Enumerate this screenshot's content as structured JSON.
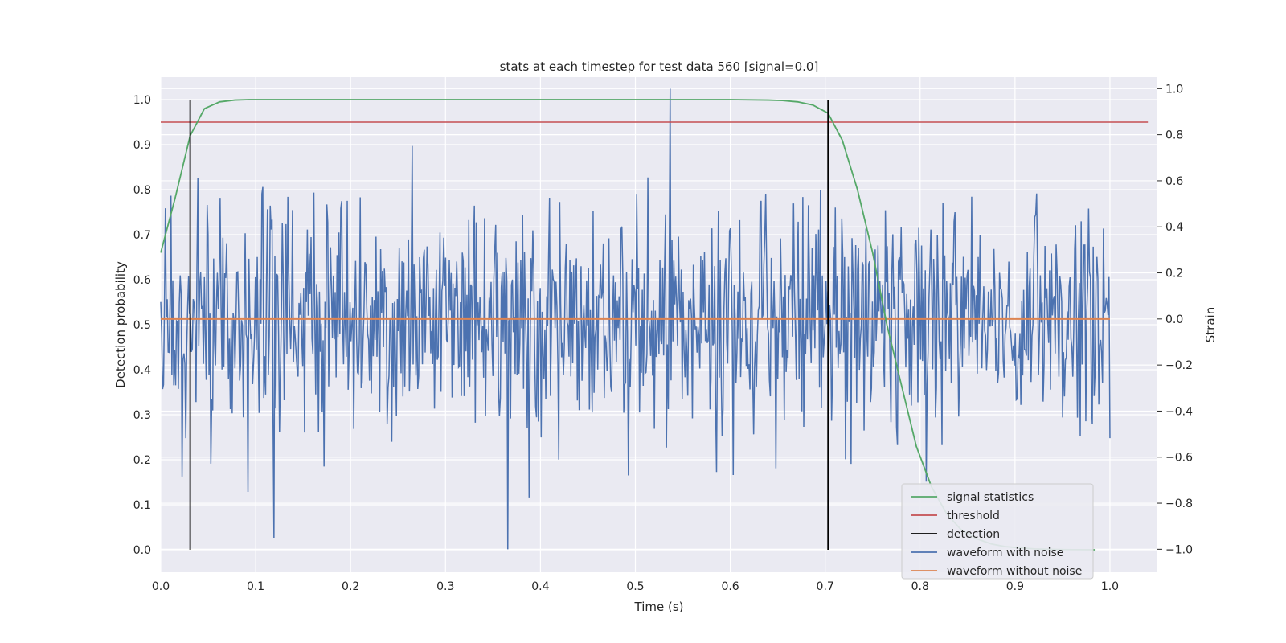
{
  "chart_data": {
    "type": "line",
    "title": "stats at each timestep for test data 560 [signal=0.0]",
    "xlabel": "Time (s)",
    "ylabel": "Detection probability",
    "y2label": "Strain",
    "xlim": [
      0.0,
      1.05
    ],
    "ylim": [
      -0.05,
      1.05
    ],
    "y2lim": [
      -1.1,
      1.05
    ],
    "grid": true,
    "legend_position": "lower right",
    "x_ticks": [
      "0.0",
      "0.1",
      "0.2",
      "0.3",
      "0.4",
      "0.5",
      "0.6",
      "0.7",
      "0.8",
      "0.9",
      "1.0"
    ],
    "y_ticks": [
      "0.0",
      "0.1",
      "0.2",
      "0.3",
      "0.4",
      "0.5",
      "0.6",
      "0.7",
      "0.8",
      "0.9",
      "1.0"
    ],
    "y2_ticks": [
      "−1.0",
      "−0.8",
      "−0.6",
      "−0.4",
      "−0.2",
      "0.0",
      "0.2",
      "0.4",
      "0.6",
      "0.8",
      "1.0"
    ],
    "series": [
      {
        "name": "signal statistics",
        "color": "#55a868",
        "axis": "left",
        "x": [
          0.0,
          0.015,
          0.031,
          0.046,
          0.062,
          0.078,
          0.093,
          0.2,
          0.4,
          0.6,
          0.64,
          0.655,
          0.671,
          0.687,
          0.703,
          0.718,
          0.734,
          0.75,
          0.765,
          0.781,
          0.796,
          0.812,
          0.828,
          0.843,
          0.859,
          0.875,
          0.89,
          0.906,
          0.921,
          0.937,
          0.953,
          0.968,
          0.984
        ],
        "values": [
          0.66,
          0.78,
          0.92,
          0.98,
          0.995,
          0.999,
          1.0,
          1.0,
          1.0,
          1.0,
          0.999,
          0.998,
          0.995,
          0.988,
          0.97,
          0.91,
          0.8,
          0.66,
          0.5,
          0.36,
          0.23,
          0.14,
          0.08,
          0.045,
          0.025,
          0.013,
          0.007,
          0.004,
          0.002,
          0.001,
          0.0005,
          0.0002,
          0.0
        ]
      },
      {
        "name": "threshold",
        "color": "#c44e52",
        "axis": "left",
        "x": [
          0.0,
          1.04
        ],
        "values": [
          0.95,
          0.95
        ]
      },
      {
        "name": "detection",
        "color": "#000000",
        "axis": "left",
        "segments": [
          {
            "x": 0.031,
            "y": [
              0.0,
              1.0
            ]
          },
          {
            "x": 0.703,
            "y": [
              0.0,
              1.0
            ]
          }
        ]
      },
      {
        "name": "waveform with noise",
        "color": "#4c72b0",
        "axis": "right",
        "type": "noise",
        "x_range": [
          0.0,
          1.0
        ],
        "samples": 1024,
        "min": -1.0,
        "max": 1.0,
        "x_at_max": 0.537,
        "x_at_min": 0.366
      },
      {
        "name": "waveform without noise",
        "color": "#dd8452",
        "axis": "right",
        "x": [
          0.0,
          1.0
        ],
        "values": [
          0.0,
          0.0
        ]
      }
    ]
  }
}
